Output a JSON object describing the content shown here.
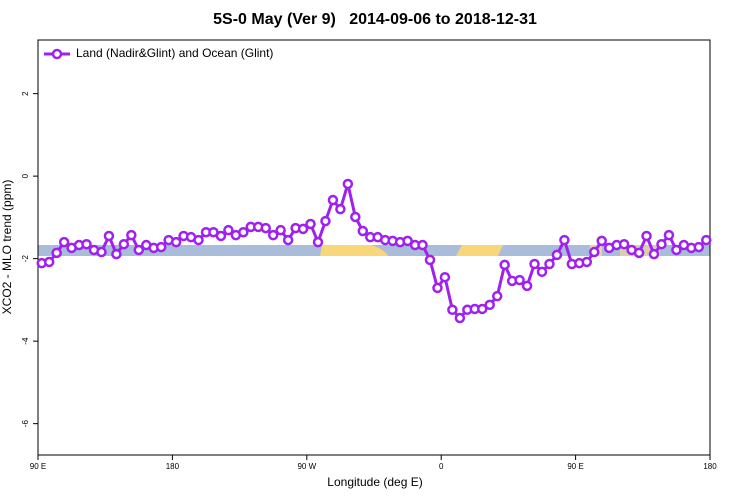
{
  "chart_data": {
    "type": "line",
    "title": "5S-0 May (Ver 9)   2014-09-06 to 2018-12-31",
    "xlabel": "Longitude (deg E)",
    "ylabel": "XCO2 - MLO trend (ppm)",
    "x": [
      92.5,
      97.5,
      102.5,
      107.5,
      112.5,
      117.5,
      122.5,
      127.5,
      132.5,
      137.5,
      142.5,
      147.5,
      152.5,
      157.5,
      162.5,
      167.5,
      172.5,
      177.5,
      182.5,
      187.5,
      192.5,
      197.5,
      202.5,
      207.5,
      212.5,
      217.5,
      222.5,
      227.5,
      232.5,
      237.5,
      242.5,
      247.5,
      252.5,
      257.5,
      262.5,
      267.5,
      272.5,
      277.5,
      282.5,
      287.5,
      292.5,
      297.5,
      302.5,
      307.5,
      312.5,
      317.5,
      322.5,
      327.5,
      332.5,
      337.5,
      342.5,
      347.5,
      352.5,
      357.5,
      362.5,
      367.5,
      372.5,
      377.5,
      382.5,
      387.5,
      392.5,
      397.5,
      402.5,
      407.5,
      412.5,
      417.5,
      422.5,
      427.5,
      432.5,
      437.5,
      442.5,
      447.5,
      452.5,
      457.5,
      462.5,
      467.5,
      472.5,
      477.5,
      482.5,
      487.5,
      492.5,
      497.5,
      502.5,
      507.5,
      512.5,
      517.5,
      522.5,
      527.5,
      532.5,
      537.5
    ],
    "series": [
      {
        "name": "Land (Nadir&Glint) and Ocean (Glint)",
        "color": "#a020f0",
        "values": [
          -2.11,
          -2.08,
          -1.86,
          -1.6,
          -1.74,
          -1.67,
          -1.65,
          -1.79,
          -1.84,
          -1.45,
          -1.89,
          -1.65,
          -1.43,
          -1.79,
          -1.67,
          -1.74,
          -1.72,
          -1.55,
          -1.6,
          -1.45,
          -1.48,
          -1.55,
          -1.36,
          -1.36,
          -1.45,
          -1.31,
          -1.43,
          -1.36,
          -1.23,
          -1.23,
          -1.26,
          -1.43,
          -1.31,
          -1.55,
          -1.26,
          -1.28,
          -1.16,
          -1.6,
          -1.09,
          -0.58,
          -0.8,
          -0.19,
          -0.99,
          -1.33,
          -1.48,
          -1.48,
          -1.55,
          -1.57,
          -1.6,
          -1.57,
          -1.67,
          -1.67,
          -2.03,
          -2.71,
          -2.45,
          -3.24,
          -3.44,
          -3.24,
          -3.22,
          -3.22,
          -3.12,
          -2.91,
          -2.15,
          -2.54,
          -2.52,
          -2.66,
          -2.13,
          -2.32,
          -2.13,
          -1.91,
          -1.55,
          -2.13,
          -2.11,
          -2.08,
          -1.84,
          -1.57,
          -1.74,
          -1.67,
          -1.65,
          -1.79,
          -1.86,
          -1.45,
          -1.89,
          -1.65,
          -1.43,
          -1.79,
          -1.67,
          -1.74,
          -1.72,
          -1.55
        ]
      }
    ],
    "xlim": [
      90,
      540
    ],
    "xticks": [
      {
        "value": 90,
        "label": "90 E"
      },
      180,
      {
        "value": 270,
        "label": "90 W"
      },
      {
        "value": 360,
        "label": "0"
      },
      {
        "value": 450,
        "label": "90 E"
      },
      {
        "value": 540,
        "label": "180"
      }
    ],
    "ylim": [
      -6.76,
      3.3
    ],
    "yticks": [
      -6,
      -4,
      -2,
      0,
      2
    ],
    "legend": "top-left"
  }
}
